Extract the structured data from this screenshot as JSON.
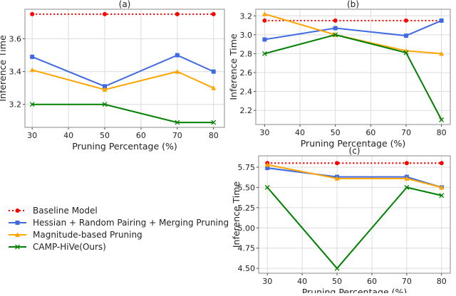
{
  "legend": {
    "placement": "left-middle",
    "entries": [
      "Baseline Model",
      "Hessian + Random Pairing + Merging Pruning",
      "Magnitude-based Pruning",
      "CAMP-HiVe(Ours)"
    ]
  },
  "series_styles": [
    {
      "color": "#ff0000",
      "marker": "circle",
      "dash": "dotted"
    },
    {
      "color": "#4169e1",
      "marker": "square",
      "dash": "solid"
    },
    {
      "color": "#ffa500",
      "marker": "triangle",
      "dash": "solid"
    },
    {
      "color": "#008000",
      "marker": "x",
      "dash": "solid"
    }
  ],
  "chart_data": [
    {
      "type": "line",
      "title": "(a)",
      "xlabel": "Pruning Percentage (%)",
      "ylabel": "Inference Time",
      "x": [
        30,
        50,
        70,
        80
      ],
      "xlim": [
        28,
        83
      ],
      "ylim": [
        3.06,
        3.78
      ],
      "xticks": [
        30,
        40,
        50,
        60,
        70,
        80
      ],
      "yticks": [
        "3.2",
        "3.4",
        "3.6"
      ],
      "grid": true,
      "series": [
        {
          "name": "Baseline Model",
          "values": [
            3.75,
            3.75,
            3.75,
            3.75
          ]
        },
        {
          "name": "Hessian + Random Pairing + Merging Pruning",
          "values": [
            3.49,
            3.31,
            3.5,
            3.4
          ]
        },
        {
          "name": "Magnitude-based Pruning",
          "values": [
            3.41,
            3.29,
            3.4,
            3.3
          ]
        },
        {
          "name": "CAMP-HiVe(Ours)",
          "values": [
            3.2,
            3.2,
            3.09,
            3.09
          ]
        }
      ]
    },
    {
      "type": "line",
      "title": "(b)",
      "xlabel": "Pruning Percentage (%)",
      "ylabel": "Inference Time",
      "x": [
        30,
        50,
        70,
        80
      ],
      "xlim": [
        27.5,
        82.5
      ],
      "ylim": [
        2.05,
        3.27
      ],
      "xticks": [
        30,
        40,
        50,
        60,
        70,
        80
      ],
      "yticks": [
        "2.2",
        "2.4",
        "2.6",
        "2.8",
        "3.0",
        "3.2"
      ],
      "grid": true,
      "series": [
        {
          "name": "Baseline Model",
          "values": [
            3.15,
            3.15,
            3.15,
            3.15
          ]
        },
        {
          "name": "Hessian + Random Pairing + Merging Pruning",
          "values": [
            2.95,
            3.07,
            2.99,
            3.15
          ]
        },
        {
          "name": "Magnitude-based Pruning",
          "values": [
            3.22,
            3.0,
            2.83,
            2.8
          ]
        },
        {
          "name": "CAMP-HiVe(Ours)",
          "values": [
            2.8,
            3.0,
            2.81,
            2.1
          ]
        }
      ]
    },
    {
      "type": "line",
      "title": "(c)",
      "xlabel": "Pruning Percentage (%)",
      "ylabel": "Inference Time",
      "x": [
        30,
        50,
        70,
        80
      ],
      "xlim": [
        27.5,
        82.5
      ],
      "ylim": [
        4.44,
        5.89
      ],
      "xticks": [
        30,
        40,
        50,
        60,
        70,
        80
      ],
      "yticks": [
        "4.50",
        "4.75",
        "5.00",
        "5.25",
        "5.50",
        "5.75"
      ],
      "grid": true,
      "series": [
        {
          "name": "Baseline Model",
          "values": [
            5.8,
            5.8,
            5.8,
            5.8
          ]
        },
        {
          "name": "Hessian + Random Pairing + Merging Pruning",
          "values": [
            5.74,
            5.63,
            5.63,
            5.5
          ]
        },
        {
          "name": "Magnitude-based Pruning",
          "values": [
            5.78,
            5.61,
            5.61,
            5.5
          ]
        },
        {
          "name": "CAMP-HiVe(Ours)",
          "values": [
            5.5,
            4.5,
            5.5,
            5.4
          ]
        }
      ]
    }
  ]
}
